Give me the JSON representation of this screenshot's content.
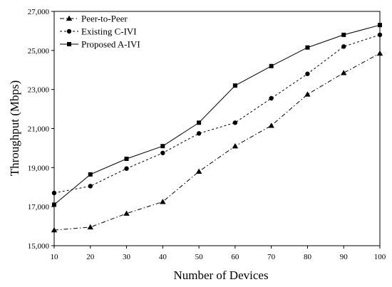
{
  "chart_data": {
    "type": "line",
    "xlabel": "Number of Devices",
    "ylabel": "Throughput (Mbps)",
    "x": [
      10,
      20,
      30,
      40,
      50,
      60,
      70,
      80,
      90,
      100
    ],
    "xlim": [
      10,
      100
    ],
    "ylim": [
      15000,
      27000
    ],
    "x_ticks": [
      "10",
      "20",
      "30",
      "40",
      "50",
      "60",
      "70",
      "80",
      "90",
      "100"
    ],
    "y_ticks": [
      "15,000",
      "17,000",
      "19,000",
      "21,000",
      "23,000",
      "25,000",
      "27,000"
    ],
    "grid": false,
    "legend_position": "top-left",
    "series": [
      {
        "name": "Peer-to-Peer",
        "marker": "triangle",
        "line_style": "dash-dot",
        "values": [
          15800,
          15950,
          16650,
          17250,
          18800,
          20100,
          21150,
          22750,
          23850,
          24850
        ]
      },
      {
        "name": "Existing C-IVI",
        "marker": "circle",
        "line_style": "dashed",
        "values": [
          17700,
          18050,
          18950,
          19750,
          20750,
          21300,
          22550,
          23800,
          25200,
          25800
        ]
      },
      {
        "name": "Proposed A-IVI",
        "marker": "square",
        "line_style": "solid",
        "values": [
          17100,
          18650,
          19450,
          20100,
          21300,
          23200,
          24200,
          25150,
          25800,
          26300
        ]
      }
    ]
  }
}
